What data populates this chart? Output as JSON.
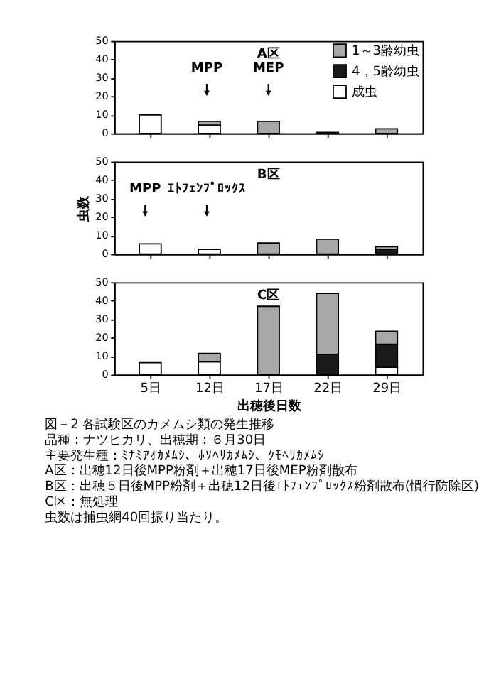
{
  "chart_data": [
    {
      "type": "bar",
      "stacked": true,
      "title": "A区",
      "categories": [
        null,
        null,
        null,
        null,
        null
      ],
      "tick_labels": "y",
      "legend": "top right",
      "ylim": [
        0,
        50
      ],
      "yticks": [
        0,
        10,
        20,
        30,
        40,
        50
      ],
      "grid": false,
      "series": [
        {
          "name": "成虫",
          "color": "#ffffff",
          "values": [
            10,
            4.5,
            null,
            null,
            null
          ]
        },
        {
          "name": "4，5齢幼虫",
          "color": "#1a1a1a",
          "values": [
            null,
            null,
            null,
            null,
            null
          ]
        },
        {
          "name": "1～3齢幼虫",
          "color": "#a8a8a8",
          "values": [
            null,
            2,
            6.5,
            0.5,
            2.5
          ]
        }
      ],
      "annotations": [
        "MPP",
        "MEP"
      ]
    },
    {
      "type": "bar",
      "stacked": true,
      "title": "B区",
      "categories": [
        null,
        null,
        null,
        null,
        null
      ],
      "tick_labels": "y",
      "ylabel": "虫数",
      "ylim": [
        0,
        50
      ],
      "yticks": [
        0,
        10,
        20,
        30,
        40,
        50
      ],
      "grid": false,
      "series": [
        {
          "color": "#ffffff",
          "values": [
            5.5,
            2.5,
            null,
            null,
            null
          ]
        },
        {
          "color": "#1a1a1a",
          "values": [
            null,
            null,
            null,
            null,
            2.5
          ]
        },
        {
          "color": "#a8a8a8",
          "values": [
            null,
            null,
            6,
            8,
            1.5
          ]
        }
      ],
      "annotations": [
        "MPP",
        "ｴﾄﾌｪﾝﾌﾟﾛｯｸｽ"
      ]
    },
    {
      "type": "bar",
      "stacked": true,
      "title": "C区",
      "categories": [
        "5日",
        "12日",
        "17日",
        "22日",
        "29日"
      ],
      "xlabel": "出穂後日数",
      "ylim": [
        0,
        50
      ],
      "yticks": [
        0,
        10,
        20,
        30,
        40,
        50
      ],
      "grid": false,
      "series": [
        {
          "color": "#ffffff",
          "values": [
            6.5,
            7,
            null,
            null,
            4
          ]
        },
        {
          "color": "#1a1a1a",
          "values": [
            null,
            null,
            null,
            11,
            12.5
          ]
        },
        {
          "color": "#a8a8a8",
          "values": [
            null,
            4.5,
            37,
            33,
            7
          ]
        }
      ],
      "annotations": [
        "図－2 各試験区のカメムシ類の発生推移",
        "品種：ナツヒカリ、出穂期：６月30日",
        "主要発生種：ﾐﾅﾐｱｵｶﾒﾑｼ、ﾎｿﾍﾘｶﾒﾑｼ、ｸﾓﾍﾘｶﾒﾑｼ",
        "A区：出穂12日後MPP粉剤＋出穂17日後MEP粉剤散布",
        "B区：出穂５日後MPP粉剤＋出穂12日後ｴﾄﾌｪﾝﾌﾟﾛｯｸｽ粉剤散布(慣行防除区)",
        "C区：無処理",
        "虫数は捕虫網40回振り当たり。"
      ]
    }
  ]
}
